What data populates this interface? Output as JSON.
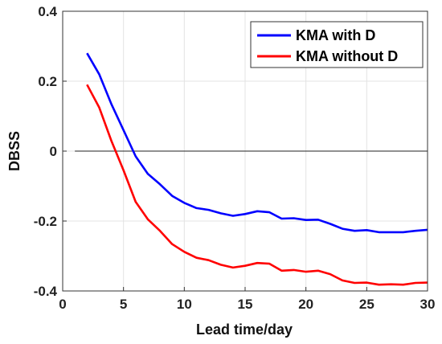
{
  "chart_data": {
    "type": "line",
    "xlabel": "Lead time/day",
    "ylabel": "DBSS",
    "xlim": [
      0,
      30
    ],
    "ylim": [
      -0.4,
      0.4
    ],
    "xticks": [
      0,
      5,
      10,
      15,
      20,
      25,
      30
    ],
    "yticks": [
      0.4,
      0.2,
      0,
      -0.2,
      -0.4
    ],
    "xtick_labels": [
      "0",
      "5",
      "10",
      "15",
      "20",
      "25",
      "30"
    ],
    "ytick_labels": [
      "0.4",
      "0.2",
      "0",
      "-0.2",
      "-0.4"
    ],
    "grid": true,
    "zero_line": true,
    "legend_position": "top-right",
    "x": [
      2,
      3,
      4,
      5,
      6,
      7,
      8,
      9,
      10,
      11,
      12,
      13,
      14,
      15,
      16,
      17,
      18,
      19,
      20,
      21,
      22,
      23,
      24,
      25,
      26,
      27,
      28,
      29,
      30
    ],
    "series": [
      {
        "name": "KMA with D",
        "color": "#0000ff",
        "values": [
          0.28,
          0.22,
          0.135,
          0.06,
          -0.015,
          -0.065,
          -0.095,
          -0.128,
          -0.148,
          -0.163,
          -0.168,
          -0.178,
          -0.185,
          -0.18,
          -0.172,
          -0.175,
          -0.193,
          -0.192,
          -0.197,
          -0.196,
          -0.208,
          -0.222,
          -0.228,
          -0.226,
          -0.232,
          -0.232,
          -0.232,
          -0.228,
          -0.225
        ]
      },
      {
        "name": "KMA without D",
        "color": "#ff0000",
        "values": [
          0.19,
          0.125,
          0.03,
          -0.055,
          -0.145,
          -0.195,
          -0.228,
          -0.266,
          -0.288,
          -0.305,
          -0.312,
          -0.325,
          -0.333,
          -0.328,
          -0.32,
          -0.322,
          -0.342,
          -0.34,
          -0.345,
          -0.342,
          -0.352,
          -0.37,
          -0.377,
          -0.376,
          -0.382,
          -0.381,
          -0.382,
          -0.377,
          -0.376
        ]
      }
    ]
  }
}
